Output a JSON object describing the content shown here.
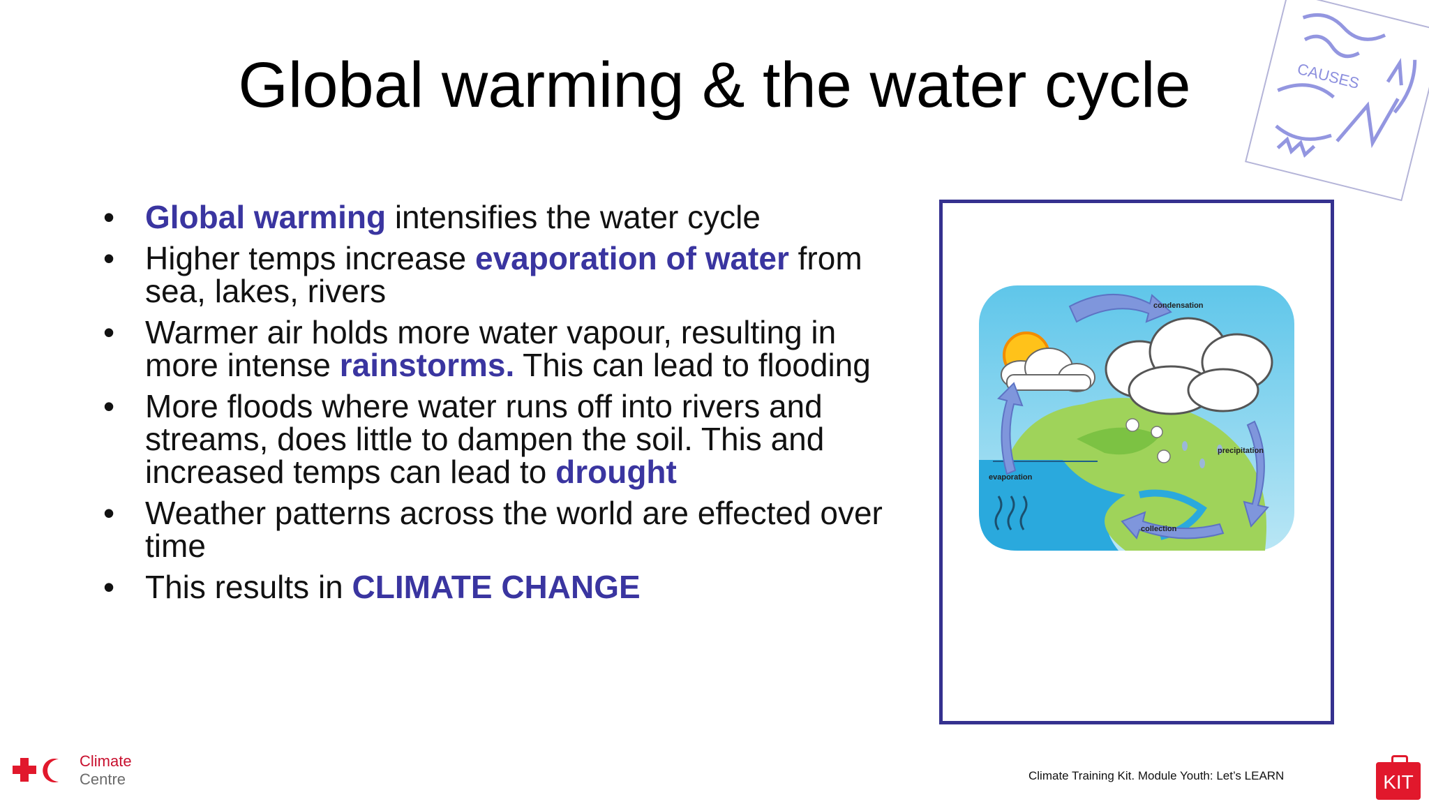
{
  "slide": {
    "title": "Global warming & the water cycle",
    "bullets": [
      {
        "parts": [
          {
            "text": "Global warming",
            "highlight": true
          },
          {
            "text": " intensifies the water cycle",
            "highlight": false
          }
        ]
      },
      {
        "parts": [
          {
            "text": "Higher temps increase ",
            "highlight": false
          },
          {
            "text": "evaporation of water",
            "highlight": true
          },
          {
            "text": " from sea, lakes, rivers",
            "highlight": false
          }
        ]
      },
      {
        "parts": [
          {
            "text": "Warmer air holds more water vapour, resulting in more intense ",
            "highlight": false
          },
          {
            "text": "rainstorms.",
            "highlight": true
          },
          {
            "text": " This can lead to flooding",
            "highlight": false
          }
        ]
      },
      {
        "parts": [
          {
            "text": "More floods where water runs off into rivers and streams, does little to dampen the soil.  This and increased temps can lead to ",
            "highlight": false
          },
          {
            "text": "drought",
            "highlight": true
          }
        ]
      },
      {
        "parts": [
          {
            "text": "Weather patterns across the world are effected over time",
            "highlight": false
          }
        ]
      },
      {
        "parts": [
          {
            "text": "This results in ",
            "highlight": false
          },
          {
            "text": "CLIMATE CHANGE",
            "highlight": true
          }
        ]
      }
    ],
    "bullet_symbol": "•"
  },
  "figure": {
    "labels": {
      "condensation": "condensation",
      "precipitation": "precipitation",
      "evaporation": "evaporation",
      "collection": "collection"
    },
    "border_color": "#35318f"
  },
  "sketch": {
    "text": "CAUSES"
  },
  "logo": {
    "line1": "Climate",
    "line2": "Centre"
  },
  "footer": {
    "note": "Climate Training Kit. Module Youth: Let’s LEARN",
    "kit_label": "KIT"
  },
  "colors": {
    "highlight": "#3a35a0",
    "red": "#e1182c"
  }
}
